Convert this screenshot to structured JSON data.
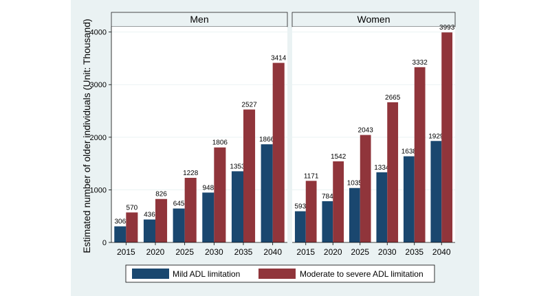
{
  "chart_data": {
    "type": "bar",
    "ylabel": "Estimated number of older individuals (Unit: Thousand)",
    "xlabel": "",
    "ylim": [
      0,
      4100
    ],
    "yticks": [
      0,
      1000,
      2000,
      3000,
      4000
    ],
    "grid": true,
    "legend_placement": "bottom",
    "categories": [
      "2015",
      "2020",
      "2025",
      "2030",
      "2035",
      "2040"
    ],
    "series_names": [
      "Mild ADL limitation",
      "Moderate to severe ADL limitation"
    ],
    "series_colors": [
      "#1a476f",
      "#90353b"
    ],
    "panels": [
      {
        "title": "Men",
        "series": [
          {
            "name": "Mild ADL limitation",
            "values": [
              306,
              436,
              645,
              948,
              1353,
              1866
            ]
          },
          {
            "name": "Moderate to severe ADL limitation",
            "values": [
              570,
              826,
              1228,
              1806,
              2527,
              3414
            ]
          }
        ]
      },
      {
        "title": "Women",
        "series": [
          {
            "name": "Mild ADL limitation",
            "values": [
              593,
              784,
              1035,
              1334,
              1638,
              1929
            ]
          },
          {
            "name": "Moderate to severe ADL limitation",
            "values": [
              1171,
              1542,
              2043,
              2665,
              3332,
              3993
            ]
          }
        ]
      }
    ]
  }
}
